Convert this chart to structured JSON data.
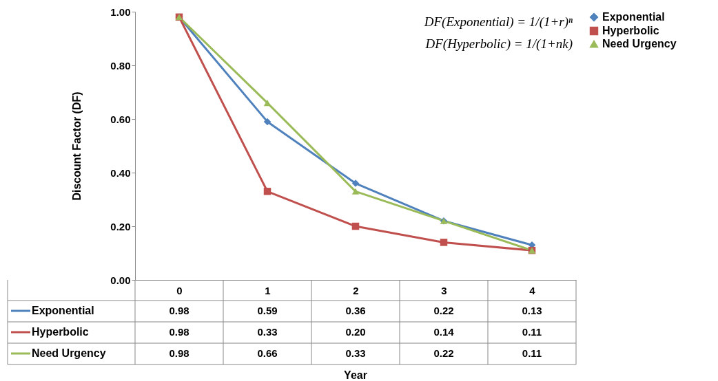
{
  "chart_data": {
    "type": "line",
    "categories": [
      "0",
      "1",
      "2",
      "3",
      "4"
    ],
    "series": [
      {
        "name": "Exponential",
        "color": "#4f81bd",
        "marker": "diamond",
        "values": [
          0.98,
          0.59,
          0.36,
          0.22,
          0.13
        ],
        "value_labels": [
          "0.98",
          "0.59",
          "0.36",
          "0.22",
          "0.13"
        ]
      },
      {
        "name": "Hyperbolic",
        "color": "#c0504d",
        "marker": "square",
        "values": [
          0.98,
          0.33,
          0.2,
          0.14,
          0.11
        ],
        "value_labels": [
          "0.98",
          "0.33",
          "0.20",
          "0.14",
          "0.11"
        ]
      },
      {
        "name": "Need Urgency",
        "color": "#9bbb59",
        "marker": "triangle",
        "values": [
          0.98,
          0.66,
          0.33,
          0.22,
          0.11
        ],
        "value_labels": [
          "0.98",
          "0.66",
          "0.33",
          "0.22",
          "0.11"
        ]
      }
    ],
    "ylabel": "Discount Factor (DF)",
    "ylim": [
      0,
      1
    ],
    "yticks": [
      {
        "value": 0,
        "label": "0.00"
      },
      {
        "value": 0.2,
        "label": "0.20"
      },
      {
        "value": 0.4,
        "label": "0.40"
      },
      {
        "value": 0.6,
        "label": "0.60"
      },
      {
        "value": 0.8,
        "label": "0.80"
      },
      {
        "value": 1,
        "label": "1.00"
      }
    ],
    "annotations": [
      "DF(Exponential) = 1/(1+r)ⁿ",
      "DF(Hyperbolic) = 1/(1+nk)",
      "Year"
    ],
    "grid": false,
    "legend": "right",
    "line_style": "solid"
  }
}
